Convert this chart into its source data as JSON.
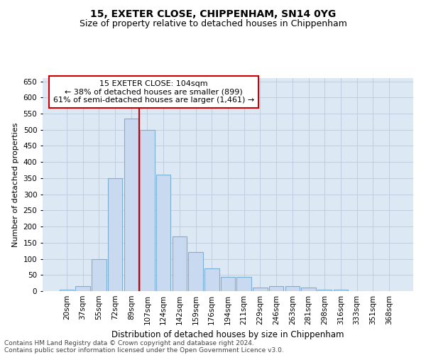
{
  "title": "15, EXETER CLOSE, CHIPPENHAM, SN14 0YG",
  "subtitle": "Size of property relative to detached houses in Chippenham",
  "xlabel": "Distribution of detached houses by size in Chippenham",
  "ylabel": "Number of detached properties",
  "categories": [
    "20sqm",
    "37sqm",
    "55sqm",
    "72sqm",
    "89sqm",
    "107sqm",
    "124sqm",
    "142sqm",
    "159sqm",
    "176sqm",
    "194sqm",
    "211sqm",
    "229sqm",
    "246sqm",
    "263sqm",
    "281sqm",
    "298sqm",
    "316sqm",
    "333sqm",
    "351sqm",
    "368sqm"
  ],
  "values": [
    5,
    15,
    100,
    350,
    535,
    500,
    360,
    170,
    120,
    70,
    45,
    45,
    10,
    15,
    15,
    10,
    5,
    5,
    0,
    0,
    0
  ],
  "bar_color": "#c9daf0",
  "bar_edge_color": "#7bafd4",
  "highlight_index": 4,
  "highlight_line_color": "#cc0000",
  "annotation_text": "15 EXETER CLOSE: 104sqm\n← 38% of detached houses are smaller (899)\n61% of semi-detached houses are larger (1,461) →",
  "annotation_box_color": "#ffffff",
  "annotation_box_edge_color": "#cc0000",
  "ylim": [
    0,
    660
  ],
  "yticks": [
    0,
    50,
    100,
    150,
    200,
    250,
    300,
    350,
    400,
    450,
    500,
    550,
    600,
    650
  ],
  "grid_color": "#c0cfe0",
  "bg_color": "#dce9f5",
  "footer_line1": "Contains HM Land Registry data © Crown copyright and database right 2024.",
  "footer_line2": "Contains public sector information licensed under the Open Government Licence v3.0.",
  "title_fontsize": 10,
  "subtitle_fontsize": 9,
  "xlabel_fontsize": 8.5,
  "ylabel_fontsize": 8,
  "tick_fontsize": 7.5,
  "annotation_fontsize": 8,
  "footer_fontsize": 6.5
}
